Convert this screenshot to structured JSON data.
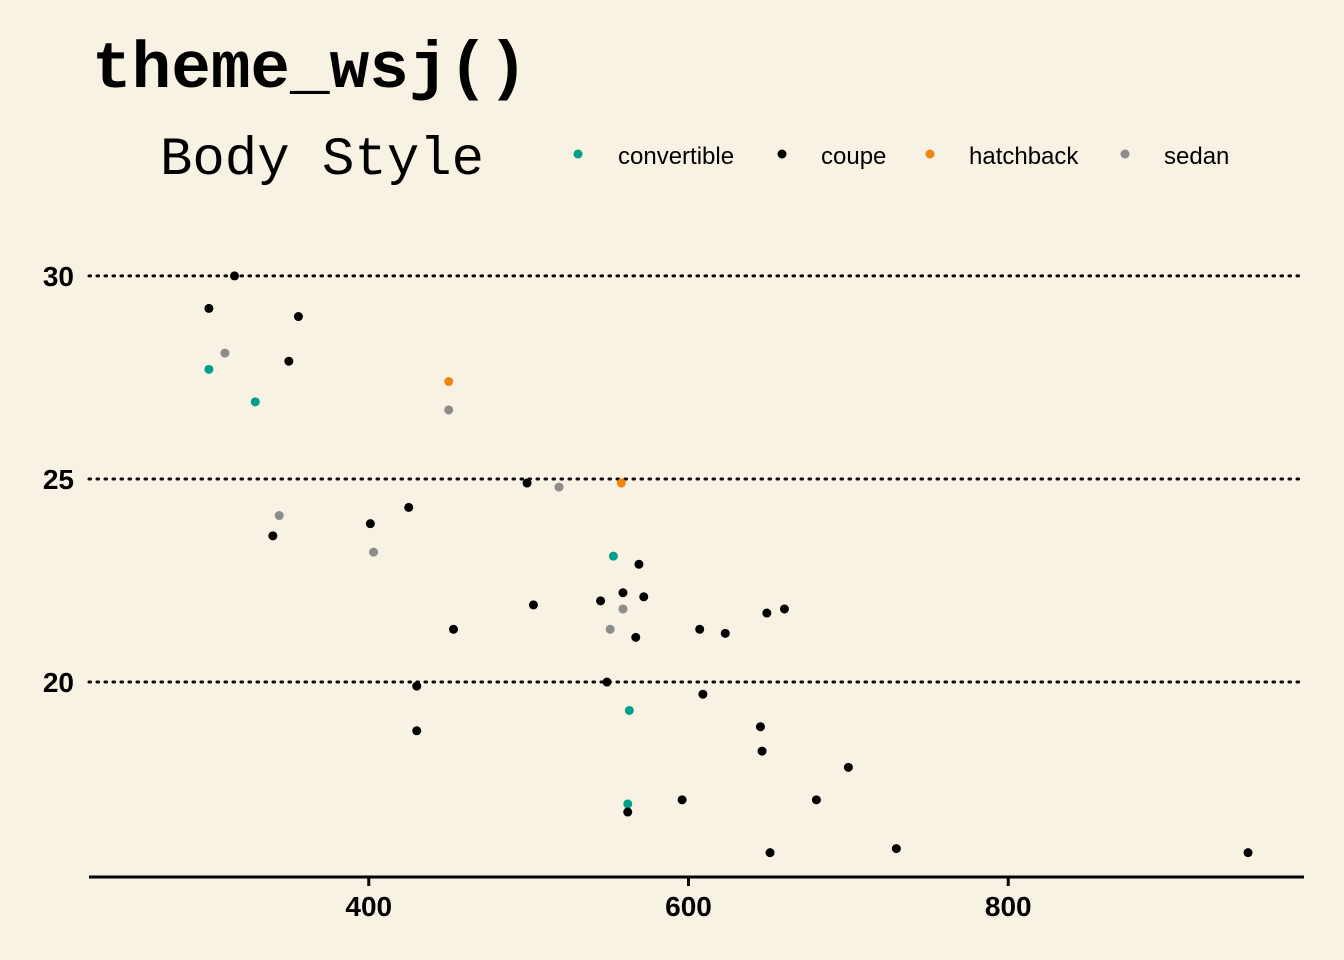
{
  "chart_data": {
    "type": "scatter",
    "title": "theme_wsj()",
    "legend": {
      "title": "Body Style",
      "placement": "top",
      "entries": [
        {
          "name": "convertible",
          "color": "#00a08a"
        },
        {
          "name": "coupe",
          "color": "#000000"
        },
        {
          "name": "hatchback",
          "color": "#f2850c"
        },
        {
          "name": "sedan",
          "color": "#8c8c8c"
        }
      ]
    },
    "xlabel": "",
    "ylabel": "",
    "xlim": [
      225,
      985
    ],
    "ylim": [
      15.2,
      31.5
    ],
    "x_ticks": [
      400,
      600,
      800
    ],
    "x_tick_labels": [
      "400",
      "600",
      "800"
    ],
    "y_ticks": [
      20,
      25,
      30
    ],
    "y_tick_labels": [
      "20",
      "25",
      "30"
    ],
    "grid": {
      "horizontal": true,
      "style": "dotted",
      "vertical": false
    },
    "series": [
      {
        "name": "convertible",
        "color": "#00a08a",
        "points": [
          [
            300,
            27.7
          ],
          [
            329,
            26.9
          ],
          [
            553,
            23.1
          ],
          [
            563,
            19.3
          ],
          [
            562,
            17.0
          ]
        ]
      },
      {
        "name": "coupe",
        "color": "#000000",
        "points": [
          [
            316,
            30.0
          ],
          [
            300,
            29.2
          ],
          [
            356,
            29.0
          ],
          [
            350,
            27.9
          ],
          [
            340,
            23.6
          ],
          [
            401,
            23.9
          ],
          [
            425,
            24.3
          ],
          [
            430,
            19.9
          ],
          [
            430,
            18.8
          ],
          [
            453,
            21.3
          ],
          [
            499,
            24.9
          ],
          [
            503,
            21.9
          ],
          [
            545,
            22.0
          ],
          [
            559,
            22.2
          ],
          [
            569,
            22.9
          ],
          [
            572,
            22.1
          ],
          [
            567,
            21.1
          ],
          [
            549,
            20.0
          ],
          [
            562,
            16.8
          ],
          [
            607,
            21.3
          ],
          [
            623,
            21.2
          ],
          [
            609,
            19.7
          ],
          [
            649,
            21.7
          ],
          [
            660,
            21.8
          ],
          [
            645,
            18.9
          ],
          [
            646,
            18.3
          ],
          [
            596,
            17.1
          ],
          [
            680,
            17.1
          ],
          [
            700,
            17.9
          ],
          [
            651,
            15.8
          ],
          [
            730,
            15.9
          ],
          [
            950,
            15.8
          ]
        ]
      },
      {
        "name": "hatchback",
        "color": "#f2850c",
        "points": [
          [
            450,
            27.4
          ],
          [
            558,
            24.9
          ]
        ]
      },
      {
        "name": "sedan",
        "color": "#8c8c8c",
        "points": [
          [
            310,
            28.1
          ],
          [
            450,
            26.7
          ],
          [
            344,
            24.1
          ],
          [
            403,
            23.2
          ],
          [
            519,
            24.8
          ],
          [
            559,
            21.8
          ],
          [
            551,
            21.3
          ]
        ]
      }
    ]
  }
}
